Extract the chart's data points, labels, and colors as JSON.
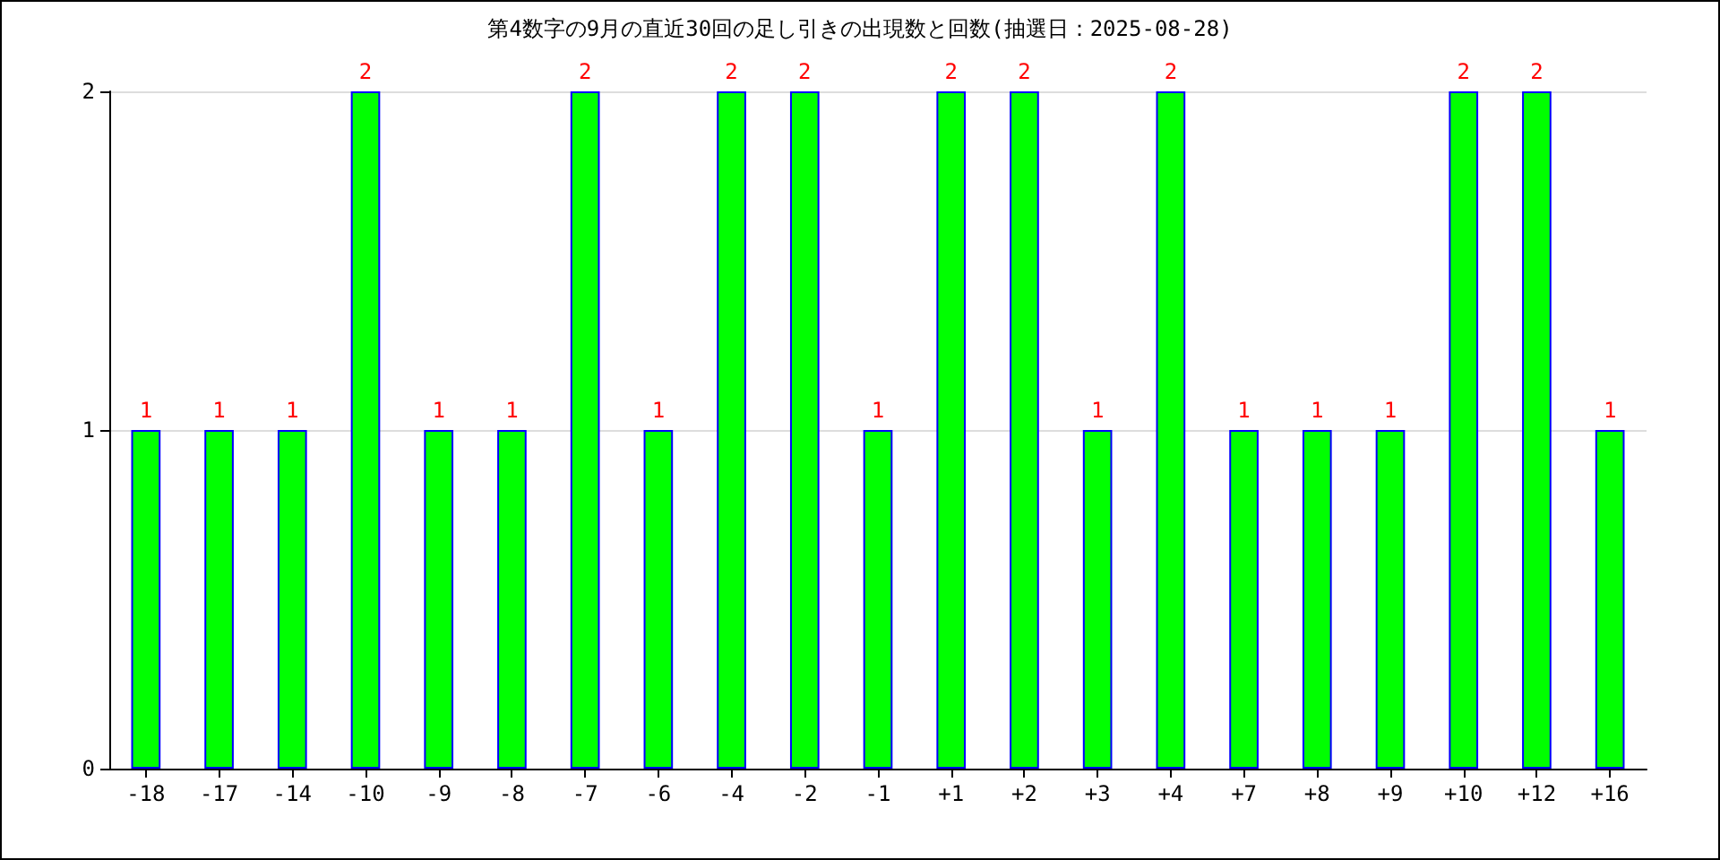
{
  "chart_data": {
    "type": "bar",
    "title": "第4数字の9月の直近30回の足し引きの出現数と回数(抽選日：2025-08-28)",
    "categories": [
      "-18",
      "-17",
      "-14",
      "-10",
      "-9",
      "-8",
      "-7",
      "-6",
      "-4",
      "-2",
      "-1",
      "+1",
      "+2",
      "+3",
      "+4",
      "+7",
      "+8",
      "+9",
      "+10",
      "+12",
      "+16"
    ],
    "values": [
      1,
      1,
      1,
      2,
      1,
      1,
      2,
      1,
      2,
      2,
      1,
      2,
      2,
      1,
      2,
      1,
      1,
      1,
      2,
      2,
      1
    ],
    "color": "#00ff00",
    "ylim": [
      0,
      2
    ],
    "yticks": [
      0,
      1,
      2
    ],
    "grid": "y",
    "data_labels": true
  }
}
